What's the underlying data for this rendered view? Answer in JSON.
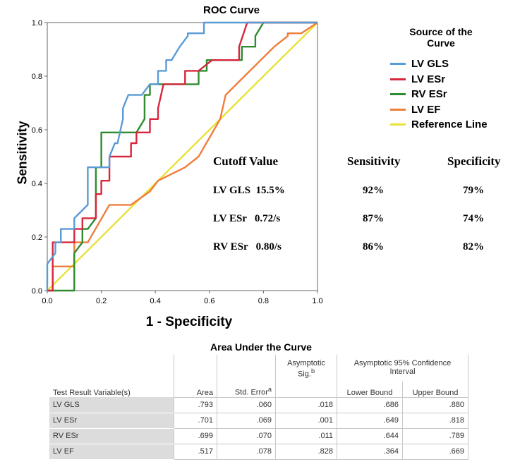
{
  "chart_data": {
    "type": "line",
    "title": "ROC Curve",
    "xlabel": "1 - Specificity",
    "ylabel": "Sensitivity",
    "xlim": [
      0,
      1
    ],
    "ylim": [
      0,
      1
    ],
    "x_ticks": [
      "0.0",
      "0.2",
      "0.4",
      "0.6",
      "0.8",
      "1.0"
    ],
    "y_ticks": [
      "0.0",
      "0.2",
      "0.4",
      "0.6",
      "0.8",
      "1.0"
    ],
    "legend_title": "Source of the Curve",
    "legend_position": "right",
    "series": [
      {
        "name": "LV GLS",
        "color": "#5b9bd5",
        "x": [
          0,
          0,
          0.03,
          0.03,
          0.05,
          0.05,
          0.1,
          0.1,
          0.13,
          0.15,
          0.15,
          0.23,
          0.23,
          0.25,
          0.26,
          0.28,
          0.28,
          0.3,
          0.33,
          0.35,
          0.38,
          0.4,
          0.41,
          0.41,
          0.44,
          0.44,
          0.46,
          0.49,
          0.52,
          0.52,
          0.58,
          0.58,
          0.64,
          0.7,
          1.0
        ],
        "y": [
          0,
          0.1,
          0.14,
          0.18,
          0.18,
          0.23,
          0.23,
          0.27,
          0.3,
          0.32,
          0.46,
          0.46,
          0.5,
          0.55,
          0.55,
          0.64,
          0.68,
          0.73,
          0.73,
          0.73,
          0.77,
          0.77,
          0.77,
          0.82,
          0.82,
          0.86,
          0.86,
          0.91,
          0.95,
          0.96,
          0.96,
          1.0,
          1.0,
          1.0,
          1.0
        ]
      },
      {
        "name": "LV ESr",
        "color": "#d7263d",
        "x": [
          0,
          0.02,
          0.02,
          0.1,
          0.1,
          0.13,
          0.13,
          0.18,
          0.18,
          0.2,
          0.2,
          0.23,
          0.23,
          0.26,
          0.31,
          0.31,
          0.33,
          0.33,
          0.38,
          0.38,
          0.41,
          0.41,
          0.43,
          0.46,
          0.51,
          0.51,
          0.56,
          0.56,
          0.61,
          0.66,
          0.71,
          0.71,
          0.74,
          1.0
        ],
        "y": [
          0,
          0,
          0.18,
          0.18,
          0.23,
          0.23,
          0.27,
          0.27,
          0.36,
          0.36,
          0.41,
          0.41,
          0.5,
          0.5,
          0.5,
          0.55,
          0.55,
          0.59,
          0.59,
          0.64,
          0.64,
          0.68,
          0.77,
          0.77,
          0.77,
          0.82,
          0.82,
          0.82,
          0.86,
          0.86,
          0.86,
          0.91,
          1.0,
          1.0
        ]
      },
      {
        "name": "RV ESr",
        "color": "#2e8b2e",
        "x": [
          0,
          0.1,
          0.1,
          0.13,
          0.13,
          0.15,
          0.18,
          0.18,
          0.2,
          0.2,
          0.33,
          0.36,
          0.36,
          0.38,
          0.38,
          0.56,
          0.56,
          0.59,
          0.59,
          0.72,
          0.72,
          0.77,
          0.77,
          0.8,
          1.0
        ],
        "y": [
          0,
          0,
          0.14,
          0.18,
          0.23,
          0.23,
          0.27,
          0.46,
          0.46,
          0.59,
          0.59,
          0.64,
          0.73,
          0.73,
          0.77,
          0.77,
          0.82,
          0.82,
          0.86,
          0.86,
          0.91,
          0.91,
          0.95,
          1.0,
          1.0
        ]
      },
      {
        "name": "LV EF",
        "color": "#ef7d3c",
        "x": [
          0,
          0.02,
          0.02,
          0.05,
          0.05,
          0.1,
          0.1,
          0.15,
          0.15,
          0.23,
          0.23,
          0.31,
          0.38,
          0.41,
          0.51,
          0.56,
          0.64,
          0.66,
          0.7,
          0.84,
          0.89,
          0.89,
          0.94,
          1.0
        ],
        "y": [
          0,
          0,
          0.09,
          0.09,
          0.09,
          0.09,
          0.18,
          0.18,
          0.18,
          0.32,
          0.32,
          0.32,
          0.37,
          0.41,
          0.46,
          0.5,
          0.64,
          0.73,
          0.77,
          0.91,
          0.95,
          0.96,
          0.96,
          1.0
        ]
      },
      {
        "name": "Reference Line",
        "color": "#e8e23a",
        "x": [
          0,
          1.0
        ],
        "y": [
          0,
          1.0
        ]
      }
    ]
  },
  "cutoff_table": {
    "headers": [
      "Cutoff Value",
      "Sensitivity",
      "Specificity"
    ],
    "rows": [
      {
        "label": "LV GLS  15.5%",
        "sensitivity": "92%",
        "specificity": "79%"
      },
      {
        "label": "LV ESr   0.72/s",
        "sensitivity": "87%",
        "specificity": "74%"
      },
      {
        "label": "RV ESr   0.80/s",
        "sensitivity": "86%",
        "specificity": "82%"
      }
    ]
  },
  "auc_table": {
    "title": "Area Under the Curve",
    "header_row1": {
      "sig": "Asymptotic Sig.",
      "sig_sup": "b",
      "ci": "Asymptotic 95% Confidence Interval"
    },
    "header_row2": {
      "var": "Test Result Variable(s)",
      "area": "Area",
      "se": "Std. Error",
      "se_sup": "a",
      "lower": "Lower Bound",
      "upper": "Upper Bound"
    },
    "rows": [
      {
        "var": "LV GLS",
        "area": ".793",
        "se": ".060",
        "sig": ".018",
        "lower": ".686",
        "upper": ".880"
      },
      {
        "var": "LV ESr",
        "area": ".701",
        "se": ".069",
        "sig": ".001",
        "lower": ".649",
        "upper": ".818"
      },
      {
        "var": "RV ESr",
        "area": ".699",
        "se": ".070",
        "sig": ".011",
        "lower": ".644",
        "upper": ".789"
      },
      {
        "var": "LV EF",
        "area": ".517",
        "se": ".078",
        "sig": ".828",
        "lower": ".364",
        "upper": ".669"
      }
    ]
  }
}
